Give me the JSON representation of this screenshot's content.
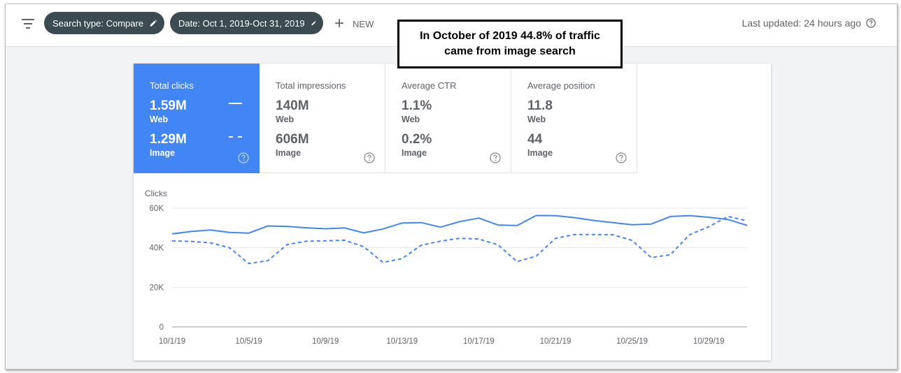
{
  "toolbar": {
    "filter_icon": "filter-list-icon",
    "chips": [
      {
        "label": "Search type: Compare",
        "icon": "pencil-icon"
      },
      {
        "label": "Date: Oct 1, 2019-Oct 31, 2019",
        "icon": "pencil-icon"
      }
    ],
    "new_label": "NEW",
    "new_icon": "plus-icon",
    "last_updated": "Last updated: 24 hours ago",
    "help_icon": "help-circle-icon"
  },
  "callout": {
    "text": "In October of 2019 44.8% of traffic came from image search"
  },
  "metrics": [
    {
      "title": "Total clicks",
      "web_value": "1.59M",
      "web_label": "Web",
      "image_value": "1.29M",
      "image_label": "Image",
      "active": true
    },
    {
      "title": "Total impressions",
      "web_value": "140M",
      "web_label": "Web",
      "image_value": "606M",
      "image_label": "Image",
      "active": false
    },
    {
      "title": "Average CTR",
      "web_value": "1.1%",
      "web_label": "Web",
      "image_value": "0.2%",
      "image_label": "Image",
      "active": false
    },
    {
      "title": "Average position",
      "web_value": "11.8",
      "web_label": "Web",
      "image_value": "44",
      "image_label": "Image",
      "active": false
    }
  ],
  "colors": {
    "accent": "#4285f4",
    "chip_bg": "#3c4a52"
  },
  "chart_data": {
    "type": "line",
    "ylabel": "Clicks",
    "xlabel": "",
    "ylim": [
      0,
      60000
    ],
    "yticks": [
      "0",
      "20K",
      "40K",
      "60K"
    ],
    "ytick_values": [
      0,
      20000,
      40000,
      60000
    ],
    "xtick_labels": [
      "10/1/19",
      "10/5/19",
      "10/9/19",
      "10/13/19",
      "10/17/19",
      "10/21/19",
      "10/25/19",
      "10/29/19"
    ],
    "xtick_days": [
      1,
      5,
      9,
      13,
      17,
      21,
      25,
      29
    ],
    "x_days": [
      1,
      2,
      3,
      4,
      5,
      6,
      7,
      8,
      9,
      10,
      11,
      12,
      13,
      14,
      15,
      16,
      17,
      18,
      19,
      20,
      21,
      22,
      23,
      24,
      25,
      26,
      27,
      28,
      29,
      30,
      31
    ],
    "grid": true,
    "series": [
      {
        "style": "solid",
        "values": [
          47000,
          48200,
          49000,
          47700,
          47400,
          51000,
          50800,
          50100,
          49600,
          50000,
          47500,
          49500,
          52500,
          52700,
          50400,
          53200,
          55000,
          51500,
          51200,
          56300,
          56200,
          55200,
          53800,
          52700,
          51600,
          52000,
          55800,
          56200,
          55400,
          54300,
          51300
        ]
      },
      {
        "style": "dashed",
        "values": [
          43500,
          43200,
          42500,
          40000,
          32000,
          33500,
          41600,
          43300,
          43500,
          43800,
          40500,
          32600,
          34500,
          41300,
          43300,
          44800,
          44400,
          41500,
          33000,
          35800,
          44700,
          46700,
          46700,
          46600,
          43700,
          35000,
          36500,
          46600,
          50600,
          55800,
          53600
        ]
      }
    ]
  }
}
